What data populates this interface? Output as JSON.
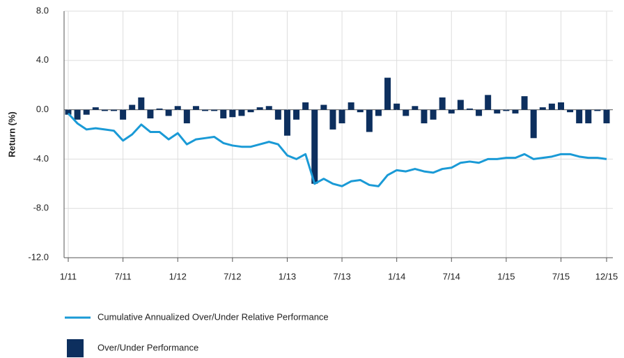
{
  "chart_data": {
    "type": "combo",
    "ylabel": "Return (%)",
    "categories": [
      "1/11",
      null,
      null,
      null,
      null,
      null,
      "7/11",
      null,
      null,
      null,
      null,
      null,
      "1/12",
      null,
      null,
      null,
      null,
      null,
      "7/12",
      null,
      null,
      null,
      null,
      null,
      "1/13",
      null,
      null,
      null,
      null,
      null,
      "7/13",
      null,
      null,
      null,
      null,
      null,
      "1/14",
      null,
      null,
      null,
      null,
      null,
      "7/14",
      null,
      null,
      null,
      null,
      null,
      "1/15",
      null,
      null,
      null,
      null,
      null,
      "7/15",
      null,
      null,
      null,
      null,
      "12/15"
    ],
    "series": [
      {
        "name": "Cumulative Annualized Over/Under Relative Performance",
        "type": "line",
        "color": "#1a9ad6",
        "values": [
          -0.3,
          -1.1,
          -1.6,
          -1.5,
          -1.6,
          -1.7,
          -2.5,
          -2.0,
          -1.2,
          -1.8,
          -1.8,
          -2.4,
          -1.9,
          -2.8,
          -2.4,
          -2.3,
          -2.2,
          -2.7,
          -2.9,
          -3.0,
          -3.0,
          -2.8,
          -2.6,
          -2.8,
          -3.7,
          -4.0,
          -3.6,
          -6.0,
          -5.6,
          -6.0,
          -6.2,
          -5.8,
          -5.7,
          -6.1,
          -6.2,
          -5.3,
          -4.9,
          -5.0,
          -4.8,
          -5.0,
          -5.1,
          -4.8,
          -4.7,
          -4.3,
          -4.2,
          -4.3,
          -4.0,
          -4.0,
          -3.9,
          -3.9,
          -3.6,
          -4.0,
          -3.9,
          -3.8,
          -3.6,
          -3.6,
          -3.8,
          -3.9,
          -3.9,
          -4.0
        ]
      },
      {
        "name": "Over/Under Performance",
        "type": "bar",
        "color": "#0d2f5e",
        "values": [
          -0.4,
          -0.8,
          -0.4,
          0.2,
          -0.1,
          -0.1,
          -0.8,
          0.4,
          1.0,
          -0.7,
          0.1,
          -0.5,
          0.3,
          -1.1,
          0.3,
          -0.1,
          -0.1,
          -0.7,
          -0.6,
          -0.5,
          -0.2,
          0.2,
          0.3,
          -0.8,
          -2.1,
          -0.8,
          0.6,
          -6.0,
          0.4,
          -1.6,
          -1.1,
          0.6,
          -0.2,
          -1.8,
          -0.5,
          2.6,
          0.5,
          -0.5,
          0.3,
          -1.1,
          -0.8,
          1.0,
          -0.3,
          0.8,
          0.1,
          -0.5,
          1.2,
          -0.3,
          -0.1,
          -0.3,
          1.1,
          -2.3,
          0.2,
          0.5,
          0.6,
          -0.2,
          -1.1,
          -1.1,
          -0.1,
          -1.1
        ]
      }
    ],
    "ylim": [
      -12,
      8
    ],
    "yticks": [
      {
        "value": -12,
        "label": "-12.0"
      },
      {
        "value": -8,
        "label": "-8.0"
      },
      {
        "value": -4,
        "label": "-4.0"
      },
      {
        "value": 0,
        "label": "0.0"
      },
      {
        "value": 4,
        "label": "4.0"
      },
      {
        "value": 8,
        "label": "8.0"
      }
    ],
    "grid": true
  }
}
